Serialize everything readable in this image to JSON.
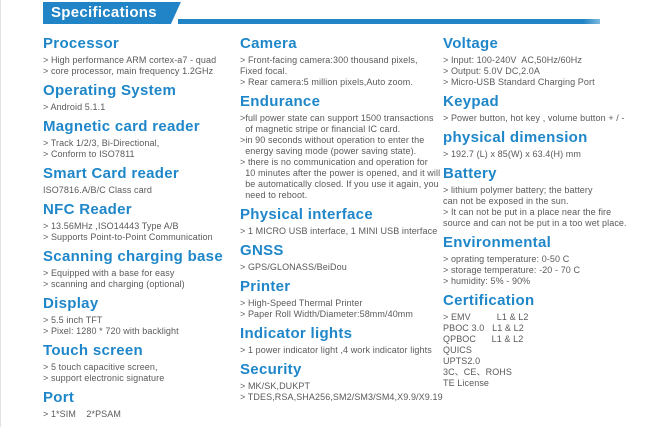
{
  "header": {
    "title": "Specifications"
  },
  "theme": {
    "accent_blue": "#2184c6",
    "heading_blue": "#1f87c9",
    "body_gray": "#595a5d"
  },
  "columns": [
    {
      "sections": [
        {
          "title": "Processor",
          "lines": [
            "> High performance ARM cortex-a7 - quad",
            "> core processor, main frequency 1.2GHz"
          ]
        },
        {
          "title": "Operating System",
          "lines": [
            "> Android 5.1.1"
          ]
        },
        {
          "title": "Magnetic card reader",
          "lines": [
            "> Track 1/2/3, Bi-Directional,",
            "> Conform to ISO7811"
          ]
        },
        {
          "title": "Smart Card reader",
          "lines": [
            "ISO7816.A/B/C Class card"
          ]
        },
        {
          "title": "NFC Reader",
          "lines": [
            "> 13.56MHz ,ISO14443 Type A/B",
            "> Supports Point-to-Point Communication"
          ]
        },
        {
          "title": "Scanning charging base",
          "lines": [
            "> Equipped with a base for easy",
            "> scanning and charging (optional)"
          ]
        },
        {
          "title": "Display",
          "lines": [
            "> 5.5 inch TFT",
            "> Pixel: 1280 * 720 with backlight"
          ]
        },
        {
          "title": "Touch screen",
          "lines": [
            "> 5 touch capacitive screen,",
            "> support electronic signature"
          ]
        },
        {
          "title": "Port",
          "lines": [
            "> 1*SIM    2*PSAM"
          ]
        }
      ]
    },
    {
      "sections": [
        {
          "title": "Camera",
          "lines": [
            "> Front-facing camera:300 thousand pixels,",
            "Fixed focal.",
            "> Rear camera:5 million pixels,Auto zoom."
          ]
        },
        {
          "title": "Endurance",
          "lines": [
            ">full power state can support 1500 transactions",
            "  of magnetic stripe or financial IC card.",
            ">in 90 seconds without operation to enter the",
            "  energy saving mode (power saving state).",
            "> there is no communication and operation for",
            "  10 minutes after the power is opened, and it will",
            "  be automatically closed. If you use it again, you",
            "  need to reboot."
          ]
        },
        {
          "title": "Physical interface",
          "lines": [
            "> 1 MICRO USB interface, 1 MINI USB interface"
          ]
        },
        {
          "title": "GNSS",
          "lines": [
            "> GPS/GLONASS/BeiDou"
          ]
        },
        {
          "title": "Printer",
          "lines": [
            "> High-Speed Thermal Printer",
            "> Paper Roll Width/Diameter:58mm/40mm"
          ]
        },
        {
          "title": "Indicator lights",
          "lines": [
            "> 1 power indicator light ,4 work indicator lights"
          ]
        },
        {
          "title": "Security",
          "lines": [
            "> MK/SK,DUKPT",
            "> TDES,RSA,SHA256,SM2/SM3/SM4,X9.9/X9.19"
          ]
        }
      ]
    },
    {
      "sections": [
        {
          "title": "Voltage",
          "lines": [
            "> Input: 100-240V  AC,50Hz/60Hz",
            "> Output: 5.0V DC,2.0A",
            "> Micro-USB Standard Charging Port"
          ]
        },
        {
          "title": "Keypad",
          "lines": [
            "> Power button, hot key , volume button + / -"
          ]
        },
        {
          "title": "physical dimension",
          "lines": [
            "> 192.7 (L) x 85(W) x 63.4(H) mm"
          ]
        },
        {
          "title": "Battery",
          "lines": [
            "> lithium polymer battery; the battery",
            "can not be exposed in the sun.",
            "> It can not be put in a place near the fire",
            "source and can not be put in a too wet place."
          ]
        },
        {
          "title": "Environmental",
          "lines": [
            "> oprating temperature: 0-50 C",
            "> storage temperature: -20 - 70 C",
            "> humidity: 5% - 90%"
          ]
        },
        {
          "title": "Certification",
          "lines": [
            "> EMV          L1 & L2",
            "PBOC 3.0   L1 & L2",
            "QPBOC      L1 & L2",
            "QUICS",
            "UPTS2.0",
            "3C、CE、ROHS",
            "TE License"
          ]
        }
      ]
    }
  ]
}
